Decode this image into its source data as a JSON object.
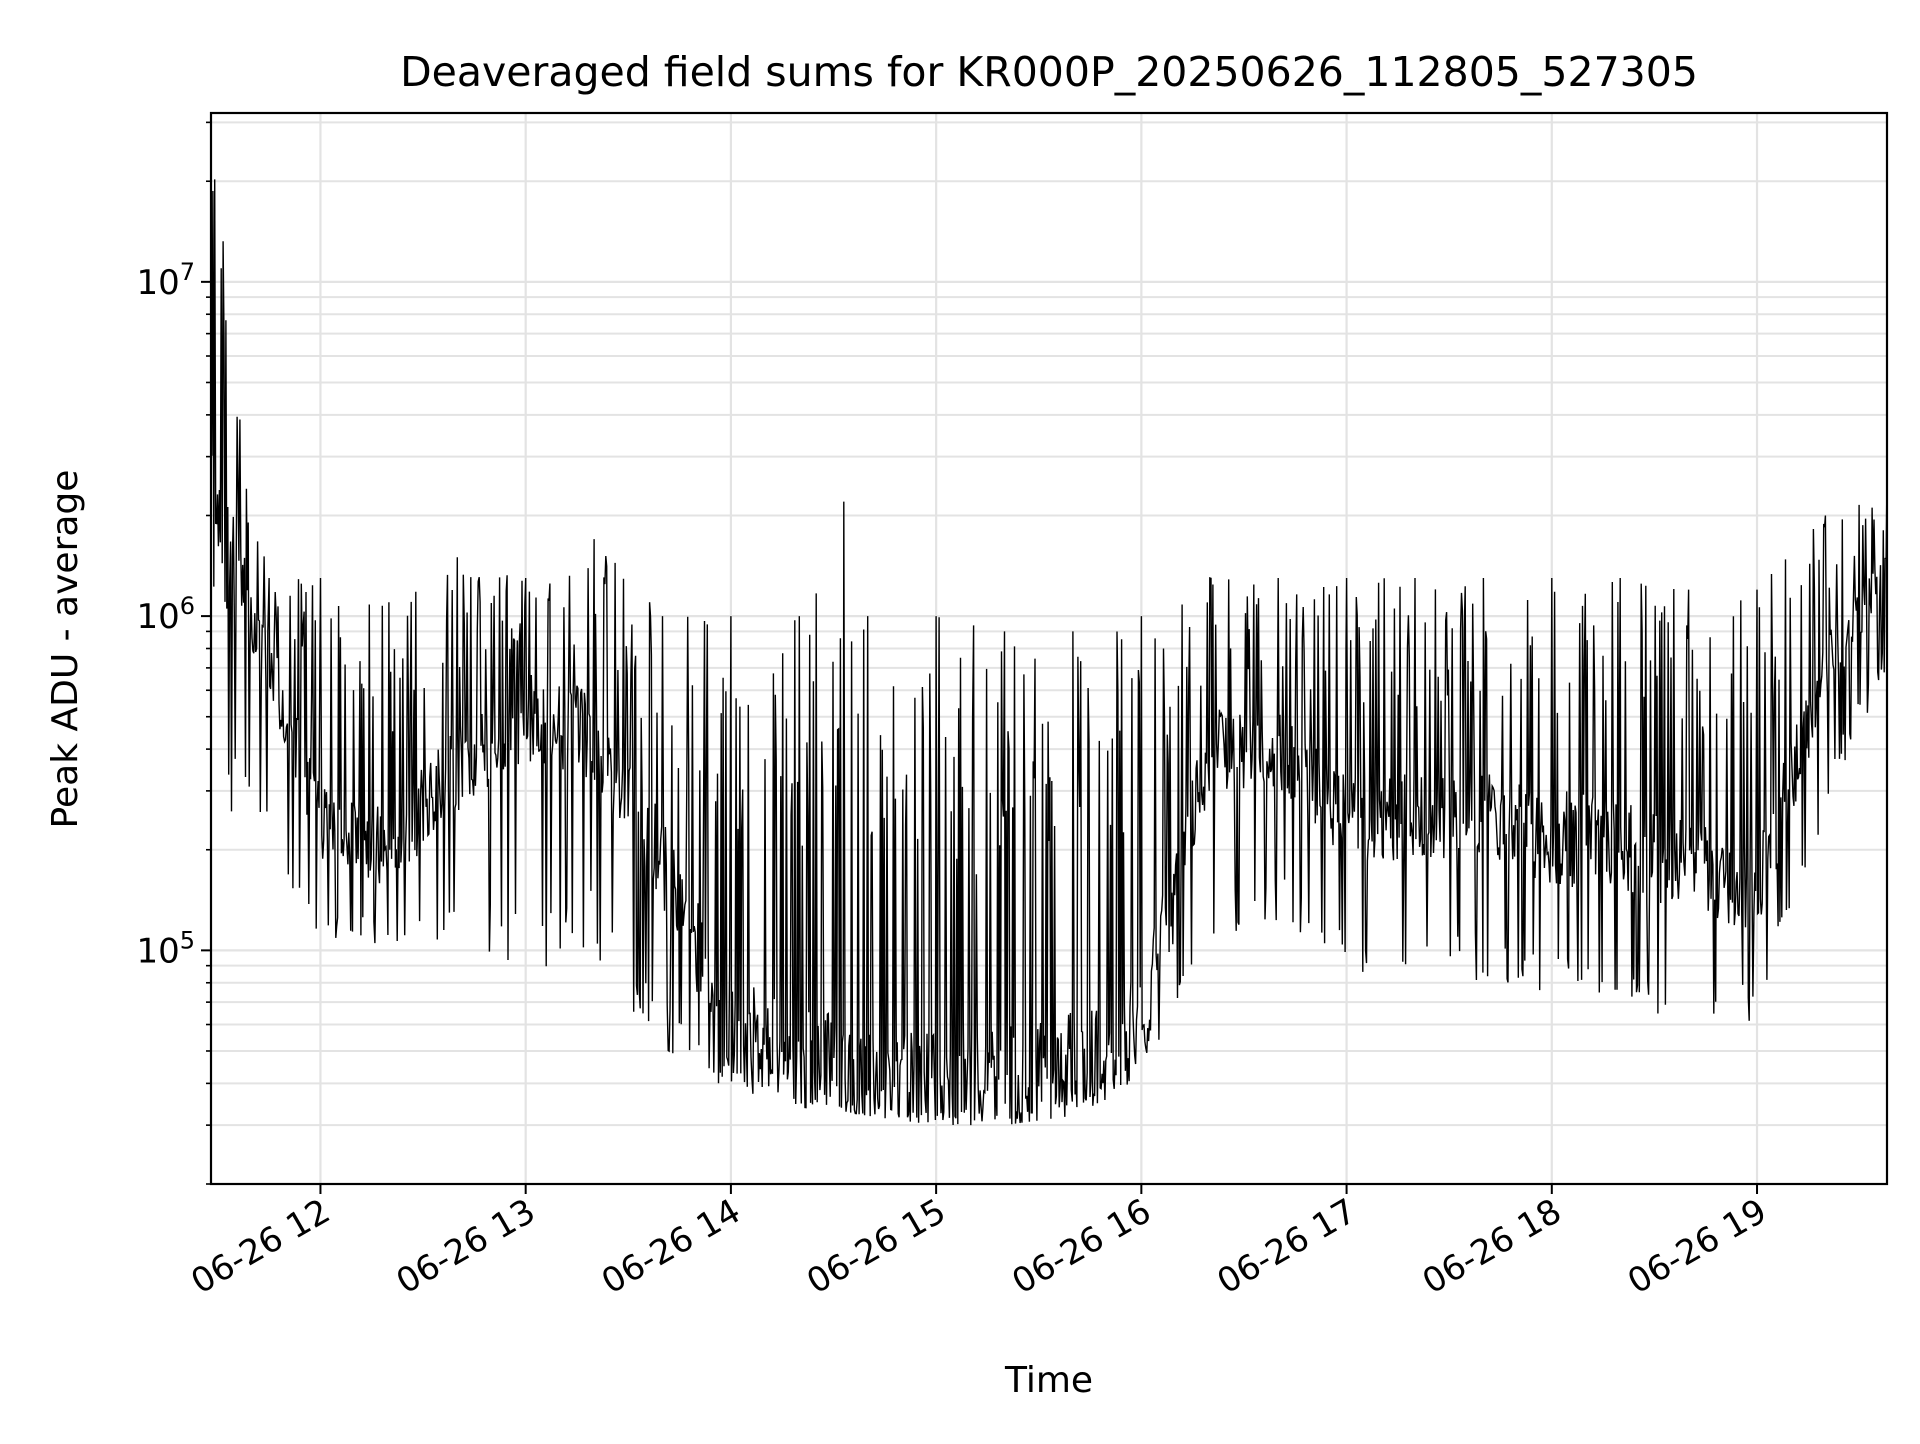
{
  "chart_data": {
    "type": "line",
    "title": "Deaveraged field sums for KR000P_20250626_112805_527305",
    "xlabel": "Time",
    "ylabel": "Peak ADU - average",
    "yscale": "log",
    "xlim": [
      "06-26 11:28",
      "06-26 19:38"
    ],
    "ylim": [
      20000,
      32000000
    ],
    "grid": true,
    "legend": "none",
    "line_color": "#000000",
    "x_ticks": [
      {
        "label": "06-26 12",
        "hour": 12
      },
      {
        "label": "06-26 13",
        "hour": 13
      },
      {
        "label": "06-26 14",
        "hour": 14
      },
      {
        "label": "06-26 15",
        "hour": 15
      },
      {
        "label": "06-26 16",
        "hour": 16
      },
      {
        "label": "06-26 17",
        "hour": 17
      },
      {
        "label": "06-26 18",
        "hour": 18
      },
      {
        "label": "06-26 19",
        "hour": 19
      }
    ],
    "y_ticks": [
      {
        "base": "10",
        "exponent": "5",
        "value": 100000
      },
      {
        "base": "10",
        "exponent": "6",
        "value": 1000000
      },
      {
        "base": "10",
        "exponent": "7",
        "value": 10000000
      }
    ],
    "series": [
      {
        "x": [
          "06-26 11:28",
          "06-26 11:45",
          "06-26 12:00",
          "06-26 12:20",
          "06-26 12:40",
          "06-26 13:00",
          "06-26 13:20",
          "06-26 13:40",
          "06-26 14:00",
          "06-26 14:20",
          "06-26 14:33",
          "06-26 14:40",
          "06-26 15:00",
          "06-26 15:20",
          "06-26 15:40",
          "06-26 16:00",
          "06-26 16:20",
          "06-26 16:40",
          "06-26 17:00",
          "06-26 17:20",
          "06-26 17:40",
          "06-26 18:00",
          "06-26 18:20",
          "06-26 18:40",
          "06-26 19:00",
          "06-26 19:20",
          "06-26 19:38"
        ],
        "low": [
          280000,
          180000,
          110000,
          95000,
          110000,
          80000,
          95000,
          50000,
          38000,
          34000,
          33000,
          32000,
          30000,
          30000,
          32000,
          40000,
          110000,
          120000,
          85000,
          85000,
          80000,
          70000,
          65000,
          62000,
          60000,
          250000,
          700000
        ],
        "high": [
          25000000,
          1300000,
          1300000,
          1100000,
          1500000,
          1300000,
          1700000,
          1000000,
          1000000,
          1000000,
          2200000,
          1000000,
          1000000,
          900000,
          900000,
          1000000,
          1300000,
          1300000,
          1300000,
          1300000,
          1300000,
          1300000,
          1300000,
          1200000,
          1200000,
          2000000,
          2600000
        ],
        "typical": [
          2000000,
          700000,
          250000,
          200000,
          350000,
          500000,
          450000,
          180000,
          60000,
          45000,
          45000,
          42000,
          42000,
          40000,
          45000,
          60000,
          400000,
          400000,
          250000,
          250000,
          250000,
          220000,
          200000,
          180000,
          150000,
          700000,
          1400000
        ]
      }
    ]
  }
}
